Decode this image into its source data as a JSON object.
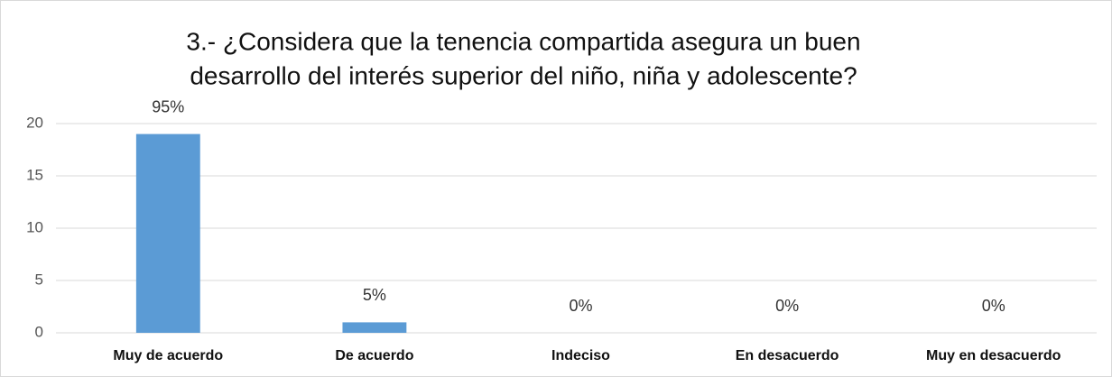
{
  "chart_data": {
    "type": "bar",
    "title": [
      "3.- ¿Considera que la tenencia compartida asegura un buen",
      "desarrollo del interés superior del niño, niña y adolescente?"
    ],
    "categories": [
      "Muy de acuerdo",
      "De acuerdo",
      "Indeciso",
      "En desacuerdo",
      "Muy en desacuerdo"
    ],
    "values": [
      19,
      1,
      0,
      0,
      0
    ],
    "value_labels": [
      "95%",
      "5%",
      "0%",
      "0%",
      "0%"
    ],
    "color": "#5b9bd5",
    "ylim": [
      0,
      20
    ],
    "yticks": [
      0,
      5,
      10,
      15,
      20
    ],
    "grid": true
  }
}
